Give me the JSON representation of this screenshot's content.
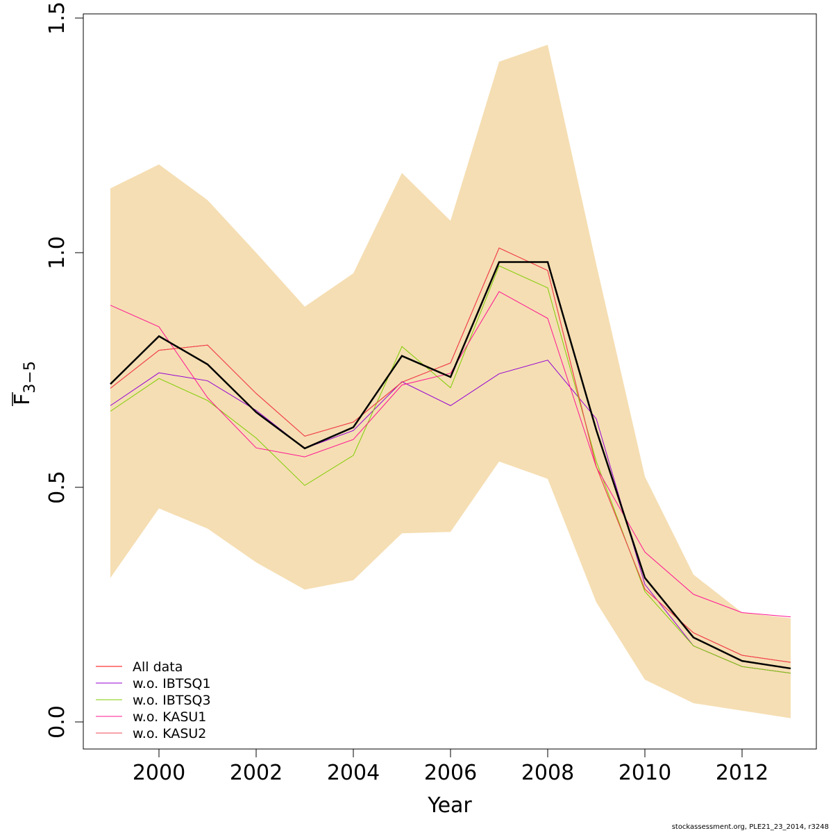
{
  "chart_data": {
    "type": "line",
    "title": "",
    "xlabel": "Year",
    "ylabel_main": "F",
    "ylabel_sub": "3−5",
    "xlim": [
      1998,
      2014
    ],
    "ylim": [
      -0.06,
      1.5
    ],
    "x_ticks": [
      2000,
      2002,
      2004,
      2006,
      2008,
      2010,
      2012
    ],
    "x_tick_labels": [
      "2000",
      "2002",
      "2004",
      "2006",
      "2008",
      "2010",
      "2012"
    ],
    "y_ticks": [
      0.0,
      0.5,
      1.0,
      1.5
    ],
    "y_tick_labels": [
      "0.0",
      "0.5",
      "1.0",
      "1.5"
    ],
    "x": [
      1999,
      2000,
      2001,
      2002,
      2003,
      2004,
      2005,
      2006,
      2007,
      2008,
      2009,
      2010,
      2011,
      2012,
      2013
    ],
    "band": {
      "name": "confidence band",
      "color": "#f5deb3",
      "upper": [
        1.137,
        1.188,
        1.112,
        1.0,
        0.885,
        0.956,
        1.17,
        1.068,
        1.407,
        1.443,
        0.975,
        0.523,
        0.314,
        0.233,
        0.221
      ],
      "lower": [
        0.307,
        0.455,
        0.412,
        0.34,
        0.282,
        0.302,
        0.402,
        0.405,
        0.555,
        0.518,
        0.255,
        0.09,
        0.04,
        0.024,
        0.008
      ]
    },
    "main_series": {
      "name": "base",
      "color": "#000000",
      "values": [
        0.72,
        0.822,
        0.762,
        0.66,
        0.583,
        0.628,
        0.78,
        0.735,
        0.98,
        0.98,
        0.622,
        0.307,
        0.18,
        0.13,
        0.114
      ]
    },
    "series": [
      {
        "name": "All data",
        "color": "#ff0000",
        "values": [
          0.711,
          0.792,
          0.803,
          0.7,
          0.609,
          0.639,
          0.724,
          0.765,
          1.01,
          0.962,
          0.544,
          0.283,
          0.19,
          0.142,
          0.127
        ]
      },
      {
        "name": "w.o. IBTSQ1",
        "color": "#9400d3",
        "values": [
          0.674,
          0.744,
          0.727,
          0.664,
          0.583,
          0.621,
          0.725,
          0.674,
          0.742,
          0.771,
          0.646,
          0.293,
          0.162,
          0.118,
          0.104
        ]
      },
      {
        "name": "w.o. IBTSQ3",
        "color": "#7fcd00",
        "values": [
          0.662,
          0.732,
          0.685,
          0.605,
          0.504,
          0.568,
          0.8,
          0.712,
          0.972,
          0.925,
          0.555,
          0.278,
          0.162,
          0.118,
          0.104
        ]
      },
      {
        "name": "w.o. KASU1",
        "color": "#ff1493",
        "values": [
          0.888,
          0.842,
          0.691,
          0.584,
          0.565,
          0.602,
          0.718,
          0.743,
          0.917,
          0.86,
          0.543,
          0.362,
          0.272,
          0.233,
          0.224
        ]
      },
      {
        "name": "w.o. KASU2",
        "color": "#ee4455",
        "values": [
          0.711,
          0.792,
          0.803,
          0.7,
          0.609,
          0.639,
          0.724,
          0.765,
          1.01,
          0.962,
          0.544,
          0.283,
          0.19,
          0.142,
          0.127
        ]
      }
    ],
    "legend": {
      "position": "bottom-left",
      "entries": [
        {
          "label": "All data",
          "color": "#ff0000"
        },
        {
          "label": "w.o. IBTSQ1",
          "color": "#9400d3"
        },
        {
          "label": "w.o. IBTSQ3",
          "color": "#7fcd00"
        },
        {
          "label": "w.o. KASU1",
          "color": "#ff1493"
        },
        {
          "label": "w.o. KASU2",
          "color": "#ee4455"
        }
      ]
    },
    "grid": false
  },
  "footer": "stockassessment.org, PLE21_23_2014, r3248"
}
